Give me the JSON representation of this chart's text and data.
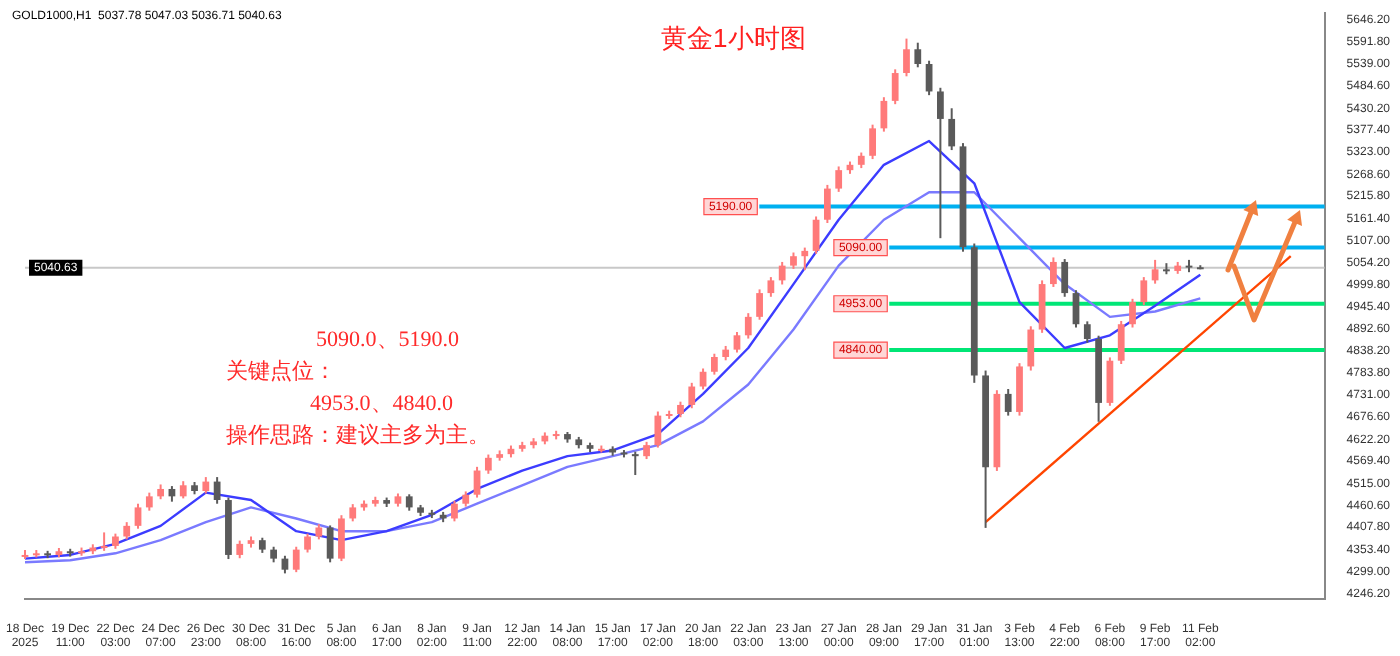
{
  "chart_data": {
    "type": "candlestick",
    "title": "黄金1小时图",
    "annotations": [
      "GOLD1000,H1  5037.78 5047.03 5036.71 5040.63",
      "5090.0、5190.0",
      "关键点位：",
      "4953.0、4840.0",
      "操作思路：建议主多为主。"
    ],
    "categories": [
      "18 Dec 2025",
      null,
      null,
      null,
      "19 Dec 11:00",
      null,
      null,
      null,
      "22 Dec 03:00",
      null,
      null,
      null,
      "24 Dec 07:00",
      null,
      null,
      null,
      "26 Dec 23:00",
      null,
      null,
      null,
      "30 Dec 08:00",
      null,
      null,
      null,
      "31 Dec 16:00",
      null,
      null,
      null,
      "5 Jan 08:00",
      null,
      null,
      null,
      "6 Jan 17:00",
      null,
      null,
      null,
      "8 Jan 02:00",
      null,
      null,
      null,
      "9 Jan 11:00",
      null,
      null,
      null,
      "12 Jan 22:00",
      null,
      null,
      null,
      "14 Jan 08:00",
      null,
      null,
      null,
      "15 Jan 17:00",
      null,
      null,
      null,
      "17 Jan 02:00",
      null,
      null,
      null,
      "20 Jan 18:00",
      null,
      null,
      null,
      "22 Jan 03:00",
      null,
      null,
      null,
      "23 Jan 13:00",
      null,
      null,
      null,
      "27 Jan 00:00",
      null,
      null,
      null,
      "28 Jan 09:00",
      null,
      null,
      null,
      "29 Jan 17:00",
      null,
      null,
      null,
      "31 Jan 01:00",
      null,
      null,
      null,
      "3 Feb 13:00",
      null,
      null,
      null,
      "4 Feb 22:00",
      null,
      null,
      null,
      "6 Feb 08:00",
      null,
      null,
      null,
      "9 Feb 17:00",
      null,
      null,
      null,
      "11 Feb 02:00",
      null,
      null,
      null,
      null,
      null,
      null,
      null,
      null,
      null,
      null,
      null
    ],
    "ohlc": [
      [
        4338,
        4352,
        4330,
        4340
      ],
      [
        4340,
        4352,
        4334,
        4344
      ],
      [
        4344,
        4350,
        4332,
        4340
      ],
      [
        4340,
        4357,
        4334,
        4349
      ],
      [
        4349,
        4355,
        4336,
        4344
      ],
      [
        4344,
        4358,
        4338,
        4349
      ],
      [
        4349,
        4366,
        4342,
        4358
      ],
      [
        4358,
        4395,
        4350,
        4362
      ],
      [
        4362,
        4392,
        4355,
        4385
      ],
      [
        4385,
        4420,
        4378,
        4411
      ],
      [
        4411,
        4465,
        4404,
        4456
      ],
      [
        4456,
        4492,
        4448,
        4483
      ],
      [
        4483,
        4512,
        4476,
        4501
      ],
      [
        4501,
        4508,
        4470,
        4483
      ],
      [
        4483,
        4520,
        4478,
        4510
      ],
      [
        4510,
        4518,
        4488,
        4496
      ],
      [
        4496,
        4530,
        4490,
        4519
      ],
      [
        4519,
        4530,
        4465,
        4474
      ],
      [
        4474,
        4480,
        4330,
        4340
      ],
      [
        4340,
        4375,
        4332,
        4367
      ],
      [
        4367,
        4385,
        4358,
        4376
      ],
      [
        4376,
        4382,
        4345,
        4353
      ],
      [
        4353,
        4360,
        4322,
        4331
      ],
      [
        4331,
        4338,
        4295,
        4304
      ],
      [
        4304,
        4360,
        4298,
        4353
      ],
      [
        4353,
        4392,
        4346,
        4385
      ],
      [
        4385,
        4415,
        4378,
        4407
      ],
      [
        4407,
        4412,
        4322,
        4331
      ],
      [
        4331,
        4437,
        4325,
        4429
      ],
      [
        4429,
        4464,
        4422,
        4456
      ],
      [
        4456,
        4473,
        4448,
        4465
      ],
      [
        4465,
        4482,
        4458,
        4474
      ],
      [
        4474,
        4480,
        4457,
        4465
      ],
      [
        4465,
        4490,
        4458,
        4483
      ],
      [
        4483,
        4488,
        4448,
        4456
      ],
      [
        4456,
        4462,
        4435,
        4443
      ],
      [
        4443,
        4450,
        4430,
        4438
      ],
      [
        4438,
        4445,
        4420,
        4429
      ],
      [
        4429,
        4472,
        4422,
        4465
      ],
      [
        4465,
        4495,
        4458,
        4487
      ],
      [
        4487,
        4555,
        4480,
        4546
      ],
      [
        4546,
        4585,
        4538,
        4577
      ],
      [
        4577,
        4595,
        4570,
        4586
      ],
      [
        4586,
        4607,
        4578,
        4599
      ],
      [
        4599,
        4616,
        4592,
        4608
      ],
      [
        4608,
        4625,
        4600,
        4617
      ],
      [
        4617,
        4639,
        4610,
        4631
      ],
      [
        4631,
        4643,
        4622,
        4635
      ],
      [
        4635,
        4640,
        4614,
        4622
      ],
      [
        4622,
        4628,
        4600,
        4608
      ],
      [
        4608,
        4614,
        4591,
        4599
      ],
      [
        4599,
        4607,
        4590,
        4599
      ],
      [
        4599,
        4605,
        4582,
        4590
      ],
      [
        4590,
        4596,
        4578,
        4586
      ],
      [
        4586,
        4592,
        4535,
        4581
      ],
      [
        4581,
        4616,
        4574,
        4608
      ],
      [
        4608,
        4690,
        4602,
        4680
      ],
      [
        4680,
        4692,
        4672,
        4684
      ],
      [
        4684,
        4714,
        4676,
        4706
      ],
      [
        4706,
        4760,
        4698,
        4751
      ],
      [
        4751,
        4795,
        4744,
        4787
      ],
      [
        4787,
        4831,
        4780,
        4823
      ],
      [
        4823,
        4850,
        4815,
        4841
      ],
      [
        4841,
        4884,
        4834,
        4876
      ],
      [
        4876,
        4930,
        4868,
        4921
      ],
      [
        4921,
        4988,
        4914,
        4979
      ],
      [
        4979,
        5018,
        4970,
        5010
      ],
      [
        5010,
        5055,
        5000,
        5046
      ],
      [
        5046,
        5078,
        5038,
        5069
      ],
      [
        5069,
        5090,
        5035,
        5082
      ],
      [
        5082,
        5166,
        5075,
        5158
      ],
      [
        5158,
        5243,
        5150,
        5234
      ],
      [
        5234,
        5288,
        5226,
        5279
      ],
      [
        5279,
        5300,
        5270,
        5292
      ],
      [
        5292,
        5322,
        5284,
        5314
      ],
      [
        5314,
        5390,
        5306,
        5381
      ],
      [
        5381,
        5457,
        5373,
        5448
      ],
      [
        5448,
        5525,
        5440,
        5516
      ],
      [
        5516,
        5600,
        5508,
        5574
      ],
      [
        5574,
        5590,
        5530,
        5538
      ],
      [
        5538,
        5546,
        5462,
        5471
      ],
      [
        5471,
        5480,
        5113,
        5404
      ],
      [
        5404,
        5430,
        5328,
        5337
      ],
      [
        5337,
        5345,
        5080,
        5091
      ],
      [
        5091,
        5100,
        4760,
        4778
      ],
      [
        4778,
        4790,
        4406,
        4554
      ],
      [
        4554,
        4742,
        4545,
        4733
      ],
      [
        4733,
        4745,
        4680,
        4689
      ],
      [
        4689,
        4808,
        4680,
        4800
      ],
      [
        4800,
        4898,
        4790,
        4890
      ],
      [
        4890,
        5010,
        4882,
        5001
      ],
      [
        5001,
        5066,
        4994,
        5055
      ],
      [
        5055,
        5062,
        4970,
        4979
      ],
      [
        4979,
        4986,
        4895,
        4903
      ],
      [
        4903,
        4910,
        4858,
        4867
      ],
      [
        4867,
        4875,
        4665,
        4711
      ],
      [
        4711,
        4822,
        4704,
        4814
      ],
      [
        4814,
        4911,
        4806,
        4903
      ],
      [
        4903,
        4965,
        4895,
        4957
      ],
      [
        4957,
        5018,
        4950,
        5010
      ],
      [
        5010,
        5060,
        5002,
        5037
      ],
      [
        5037,
        5052,
        5025,
        5033
      ],
      [
        5033,
        5055,
        5026,
        5046
      ],
      [
        5046,
        5060,
        5030,
        5042
      ],
      [
        5042,
        5047,
        5037,
        5040
      ],
      null,
      null,
      null,
      null,
      null,
      null,
      null,
      null,
      null,
      null,
      null
    ],
    "series": [
      {
        "type": "line",
        "color": "#3c3cff",
        "values": [
          4331,
          null,
          null,
          null,
          4340,
          null,
          null,
          null,
          4367,
          null,
          null,
          null,
          4411,
          null,
          null,
          null,
          4492,
          null,
          null,
          null,
          4474,
          null,
          null,
          null,
          4398,
          null,
          null,
          null,
          4376,
          null,
          null,
          null,
          4398,
          null,
          null,
          null,
          4438,
          null,
          null,
          null,
          4501,
          null,
          null,
          null,
          4546,
          null,
          null,
          null,
          4581,
          null,
          null,
          null,
          4595,
          null,
          null,
          null,
          4635,
          null,
          null,
          null,
          4733,
          null,
          null,
          null,
          4845,
          null,
          null,
          null,
          5001,
          null,
          null,
          null,
          5158,
          null,
          null,
          null,
          5292,
          null,
          null,
          null,
          5350,
          null,
          null,
          null,
          5247,
          null,
          null,
          null,
          4957,
          null,
          null,
          null,
          4845,
          null,
          null,
          null,
          4876,
          null,
          null,
          null,
          4948,
          null,
          null,
          null,
          5024,
          null,
          null,
          null,
          null,
          null,
          null,
          null,
          null,
          null,
          null,
          null
        ]
      },
      {
        "type": "line",
        "color": "#7a7aff",
        "values": [
          4322,
          null,
          null,
          null,
          4327,
          null,
          null,
          null,
          4344,
          null,
          null,
          null,
          4376,
          null,
          null,
          null,
          4420,
          null,
          null,
          null,
          4456,
          null,
          null,
          null,
          4429,
          null,
          null,
          null,
          4398,
          null,
          null,
          null,
          4398,
          null,
          null,
          null,
          4420,
          null,
          null,
          null,
          4465,
          null,
          null,
          null,
          4510,
          null,
          null,
          null,
          4555,
          null,
          null,
          null,
          4581,
          null,
          null,
          null,
          4608,
          null,
          null,
          null,
          4666,
          null,
          null,
          null,
          4756,
          null,
          null,
          null,
          4890,
          null,
          null,
          null,
          5046,
          null,
          null,
          null,
          5158,
          null,
          null,
          null,
          5225,
          null,
          null,
          null,
          5225,
          null,
          null,
          null,
          5113,
          null,
          null,
          null,
          5001,
          null,
          null,
          null,
          4921,
          null,
          null,
          null,
          4934,
          null,
          null,
          null,
          4966,
          null,
          null,
          null,
          null,
          null,
          null,
          null,
          null,
          null,
          null,
          null
        ]
      },
      {
        "type": "line",
        "color": "#ff4500",
        "values": [
          null,
          null,
          null,
          null,
          null,
          null,
          null,
          null,
          null,
          null,
          null,
          null,
          null,
          null,
          null,
          null,
          null,
          null,
          null,
          null,
          null,
          null,
          null,
          null,
          null,
          null,
          null,
          null,
          null,
          null,
          null,
          null,
          null,
          null,
          null,
          null,
          null,
          null,
          null,
          null,
          null,
          null,
          null,
          null,
          null,
          null,
          null,
          null,
          null,
          null,
          null,
          null,
          null,
          null,
          null,
          null,
          null,
          null,
          null,
          null,
          null,
          null,
          null,
          null,
          null,
          null,
          null,
          null,
          null,
          null,
          null,
          null,
          null,
          null,
          null,
          null,
          null,
          null,
          null,
          null,
          null,
          null,
          null,
          null,
          null,
          4420,
          null,
          null,
          null,
          null,
          null,
          null,
          null,
          null,
          null,
          null,
          null,
          null,
          null,
          null,
          null,
          null,
          null,
          null,
          null,
          null,
          null,
          null,
          null,
          null,
          null,
          null,
          5069,
          null,
          null,
          null
        ]
      }
    ],
    "ylim": [
      4232,
      5662
    ],
    "yticks": [
      {
        "value": 5646.2,
        "label": "5646.20"
      },
      {
        "value": 5591.8,
        "label": "5591.80"
      },
      {
        "value": 5539.0,
        "label": "5539.00"
      },
      {
        "value": 5484.6,
        "label": "5484.60"
      },
      {
        "value": 5430.2,
        "label": "5430.20"
      },
      {
        "value": 5377.4,
        "label": "5377.40"
      },
      {
        "value": 5323.0,
        "label": "5323.00"
      },
      {
        "value": 5268.6,
        "label": "5268.60"
      },
      {
        "value": 5215.8,
        "label": "5215.80"
      },
      {
        "value": 5161.4,
        "label": "5161.40"
      },
      {
        "value": 5107.0,
        "label": "5107.00"
      },
      {
        "value": 5054.2,
        "label": "5054.20"
      },
      {
        "value": 4999.8,
        "label": "4999.80"
      },
      {
        "value": 4945.4,
        "label": "4945.40"
      },
      {
        "value": 4892.6,
        "label": "4892.60"
      },
      {
        "value": 4838.2,
        "label": "4838.20"
      },
      {
        "value": 4783.8,
        "label": "4783.80"
      },
      {
        "value": 4731.0,
        "label": "4731.00"
      },
      {
        "value": 4676.6,
        "label": "4676.60"
      },
      {
        "value": 4622.2,
        "label": "4622.20"
      },
      {
        "value": 4569.4,
        "label": "4569.40"
      },
      {
        "value": 4515.0,
        "label": "4515.00"
      },
      {
        "value": 4460.6,
        "label": "4460.60"
      },
      {
        "value": 4407.8,
        "label": "4407.80"
      },
      {
        "value": 4353.4,
        "label": "4353.40"
      },
      {
        "value": 4299.0,
        "label": "4299.00"
      },
      {
        "value": 4246.2,
        "label": "4246.20"
      }
    ],
    "ref_lines": [
      {
        "axis": "y",
        "value": 5190,
        "label": "5190.00",
        "color": "#00b0f0"
      },
      {
        "axis": "y",
        "value": 5090,
        "label": "5090.00",
        "color": "#00b0f0"
      },
      {
        "axis": "y",
        "value": 4953,
        "label": "4953.00",
        "color": "#00e676"
      },
      {
        "axis": "y",
        "value": 4840,
        "label": "4840.00",
        "color": "#00e676"
      },
      {
        "axis": "y",
        "value": 5040.63,
        "label": "5040.63",
        "color": "#c8c8c8"
      }
    ],
    "legend": false,
    "grid": false,
    "marker": "none"
  }
}
